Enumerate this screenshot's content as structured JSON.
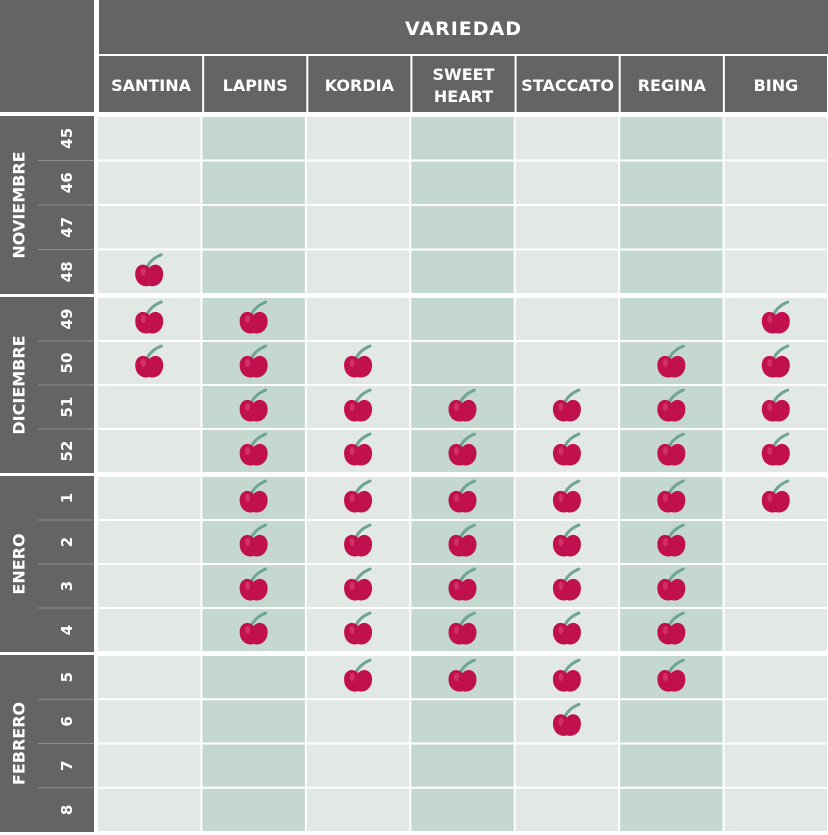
{
  "chart_data": {
    "type": "table",
    "header": "VARIEDAD",
    "varieties": [
      {
        "lines": [
          "SANTINA"
        ]
      },
      {
        "lines": [
          "LAPINS"
        ]
      },
      {
        "lines": [
          "KORDIA"
        ]
      },
      {
        "lines": [
          "SWEET",
          "HEART"
        ]
      },
      {
        "lines": [
          "STACCATO"
        ]
      },
      {
        "lines": [
          "REGINA"
        ]
      },
      {
        "lines": [
          "BING"
        ]
      }
    ],
    "months": [
      {
        "name": "NOVIEMBRE",
        "weeks": [
          "45",
          "46",
          "47",
          "48"
        ]
      },
      {
        "name": "DICIEMBRE",
        "weeks": [
          "49",
          "50",
          "51",
          "52"
        ]
      },
      {
        "name": "ENERO",
        "weeks": [
          "1",
          "2",
          "3",
          "4"
        ]
      },
      {
        "name": "FEBRERO",
        "weeks": [
          "5",
          "6",
          "7",
          "8"
        ]
      }
    ],
    "harvest": [
      [
        0,
        0,
        0,
        0,
        0,
        0,
        0
      ],
      [
        0,
        0,
        0,
        0,
        0,
        0,
        0
      ],
      [
        0,
        0,
        0,
        0,
        0,
        0,
        0
      ],
      [
        1,
        0,
        0,
        0,
        0,
        0,
        0
      ],
      [
        1,
        1,
        0,
        0,
        0,
        0,
        1
      ],
      [
        1,
        1,
        1,
        0,
        0,
        1,
        1
      ],
      [
        0,
        1,
        1,
        1,
        1,
        1,
        1
      ],
      [
        0,
        1,
        1,
        1,
        1,
        1,
        1
      ],
      [
        0,
        1,
        1,
        1,
        1,
        1,
        1
      ],
      [
        0,
        1,
        1,
        1,
        1,
        1,
        0
      ],
      [
        0,
        1,
        1,
        1,
        1,
        1,
        0
      ],
      [
        0,
        1,
        1,
        1,
        1,
        1,
        0
      ],
      [
        0,
        0,
        1,
        1,
        1,
        1,
        0
      ],
      [
        0,
        0,
        0,
        0,
        1,
        0,
        0
      ],
      [
        0,
        0,
        0,
        0,
        0,
        0,
        0
      ],
      [
        0,
        0,
        0,
        0,
        0,
        0,
        0
      ]
    ],
    "cherry_icon": "cherry-icon",
    "colors": {
      "header_bg": "#636466",
      "cell_light": "#e2e9e5",
      "cell_dark": "#c5d8cf",
      "cherry": "#c0104e",
      "stem": "#6fa496",
      "text": "#ffffff"
    }
  }
}
